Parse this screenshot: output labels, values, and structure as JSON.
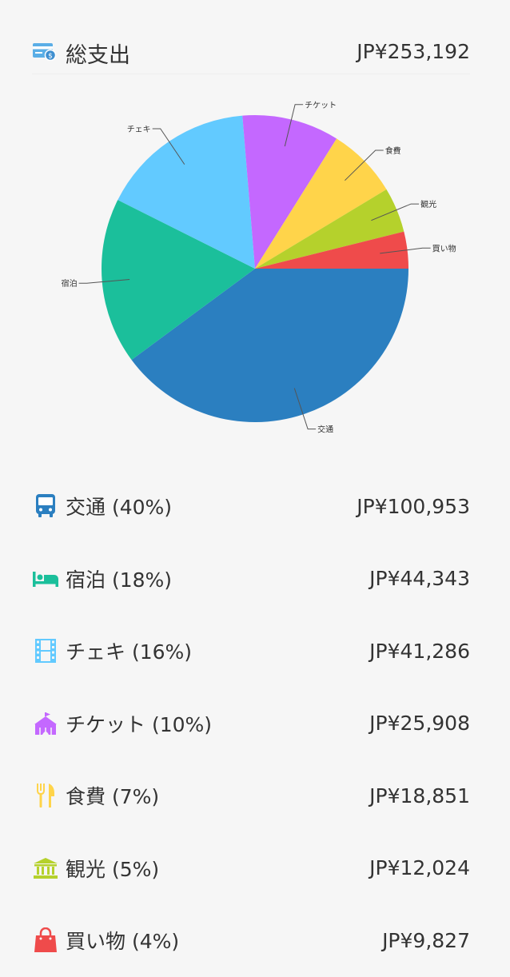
{
  "header": {
    "title": "総支出",
    "total": "JP¥253,192",
    "icon": "credit-card-icon",
    "icon_color": "#5aaee6"
  },
  "chart_data": {
    "type": "pie",
    "start_angle_deg": 0,
    "direction": "clockwise",
    "slices": [
      {
        "label": "交通",
        "value": 100953,
        "color": "#2b7fc0"
      },
      {
        "label": "宿泊",
        "value": 44343,
        "color": "#1bbf9b"
      },
      {
        "label": "チェキ",
        "value": 41286,
        "color": "#62caff"
      },
      {
        "label": "チケット",
        "value": 25908,
        "color": "#c468ff"
      },
      {
        "label": "食費",
        "value": 18851,
        "color": "#ffd44a"
      },
      {
        "label": "観光",
        "value": 12024,
        "color": "#b5d12c"
      },
      {
        "label": "買い物",
        "value": 9827,
        "color": "#ef4b4b"
      }
    ]
  },
  "list": [
    {
      "label": "交通 (40%)",
      "amount": "JP¥100,953",
      "icon": "bus-icon",
      "color": "#2b7fc0"
    },
    {
      "label": "宿泊 (18%)",
      "amount": "JP¥44,343",
      "icon": "bed-icon",
      "color": "#1bbf9b"
    },
    {
      "label": "チェキ (16%)",
      "amount": "JP¥41,286",
      "icon": "film-icon",
      "color": "#62caff"
    },
    {
      "label": "チケット (10%)",
      "amount": "JP¥25,908",
      "icon": "tent-icon",
      "color": "#c468ff"
    },
    {
      "label": "食費 (7%)",
      "amount": "JP¥18,851",
      "icon": "fork-knife-icon",
      "color": "#ffd44a"
    },
    {
      "label": "観光 (5%)",
      "amount": "JP¥12,024",
      "icon": "museum-icon",
      "color": "#b5d12c"
    },
    {
      "label": "買い物 (4%)",
      "amount": "JP¥9,827",
      "icon": "shopping-bag-icon",
      "color": "#ef4b4b"
    }
  ]
}
